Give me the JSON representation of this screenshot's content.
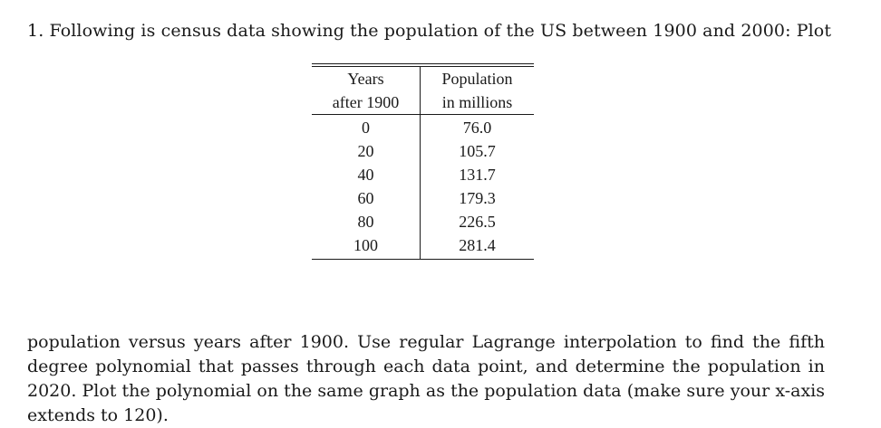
{
  "problem": {
    "intro": "1. Following is census data showing the population of the US between 1900 and 2000: Plot",
    "table": {
      "headers": {
        "years_line1": "Years",
        "years_line2": "after 1900",
        "population_line1": "Population",
        "population_line2": "in millions"
      },
      "rows": [
        {
          "years": "0",
          "population": "76.0"
        },
        {
          "years": "20",
          "population": "105.7"
        },
        {
          "years": "40",
          "population": "131.7"
        },
        {
          "years": "60",
          "population": "179.3"
        },
        {
          "years": "80",
          "population": "226.5"
        },
        {
          "years": "100",
          "population": "281.4"
        }
      ]
    },
    "continuation": "population versus years after 1900. Use regular Lagrange interpolation to find the fifth degree polynomial that passes through each data point, and determine the population in 2020. Plot the polynomial on the same graph as the population data (make sure your x-axis extends to 120)."
  }
}
